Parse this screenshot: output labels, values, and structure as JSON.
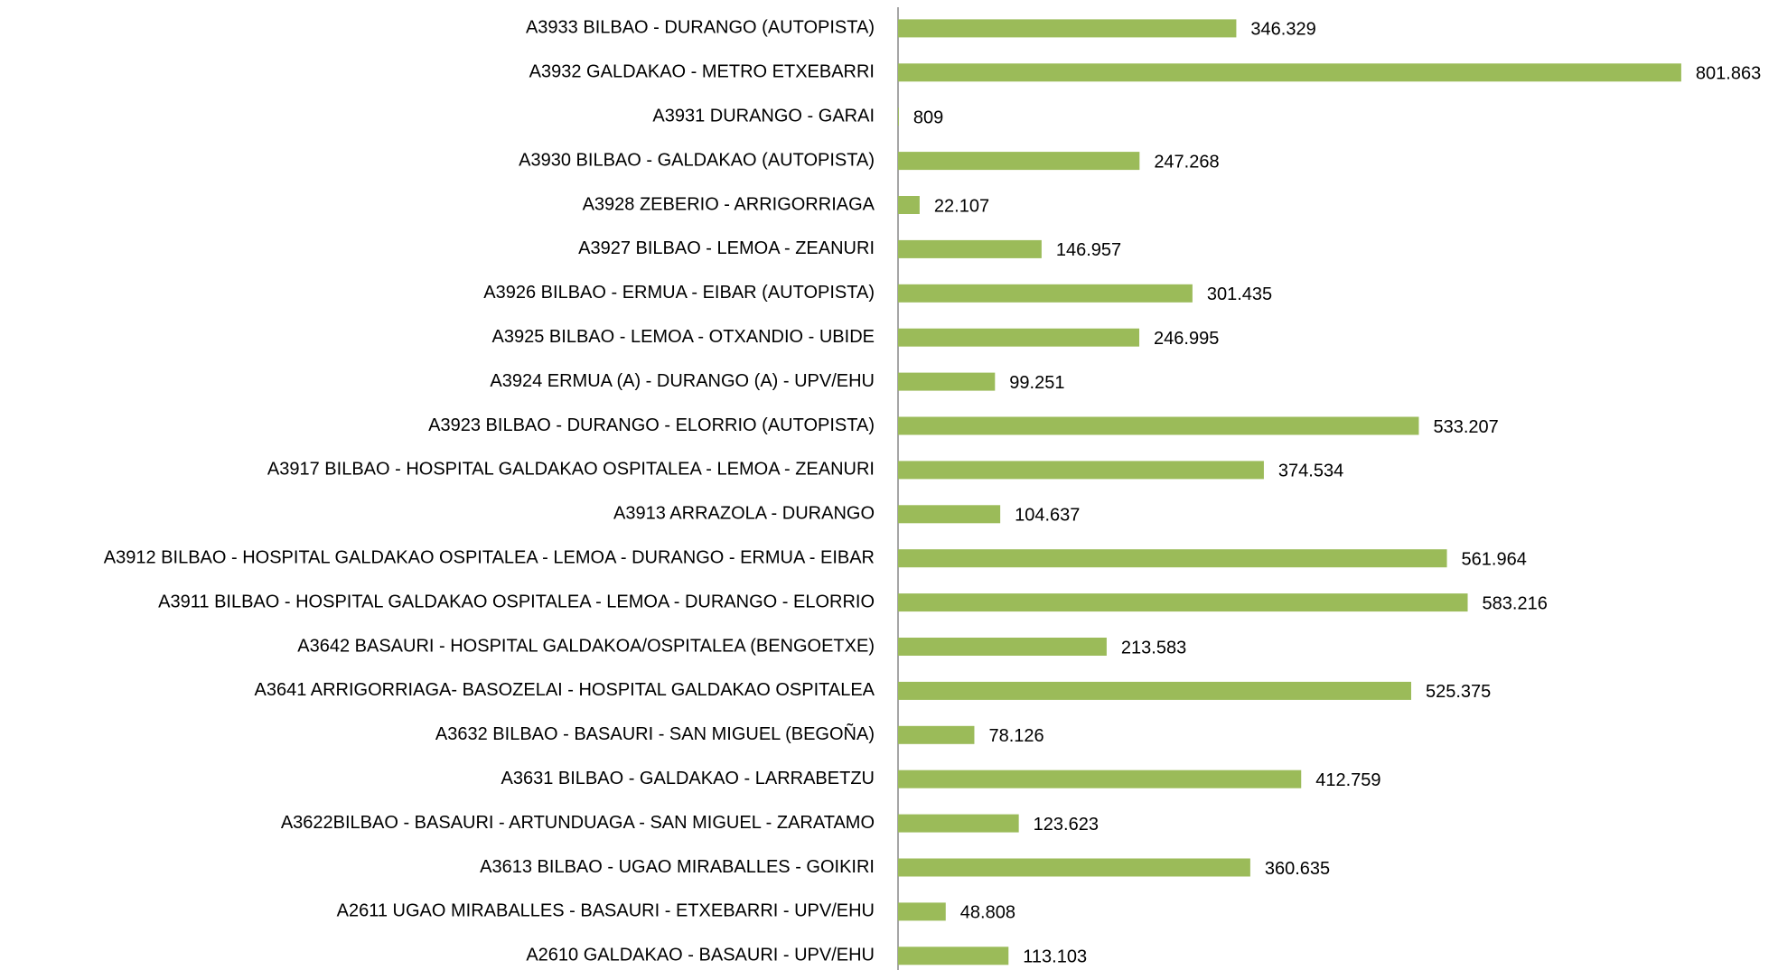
{
  "chart_data": {
    "type": "bar",
    "orientation": "horizontal",
    "categories": [
      "A3933 BILBAO - DURANGO (AUTOPISTA)",
      "A3932 GALDAKAO - METRO ETXEBARRI",
      "A3931 DURANGO - GARAI",
      "A3930 BILBAO - GALDAKAO (AUTOPISTA)",
      "A3928 ZEBERIO - ARRIGORRIAGA",
      "A3927 BILBAO - LEMOA - ZEANURI",
      "A3926 BILBAO - ERMUA - EIBAR (AUTOPISTA)",
      "A3925 BILBAO - LEMOA - OTXANDIO - UBIDE",
      "A3924 ERMUA (A) - DURANGO (A) - UPV/EHU",
      "A3923 BILBAO - DURANGO - ELORRIO (AUTOPISTA)",
      "A3917 BILBAO - HOSPITAL GALDAKAO OSPITALEA - LEMOA - ZEANURI",
      "A3913 ARRAZOLA - DURANGO",
      "A3912 BILBAO - HOSPITAL GALDAKAO OSPITALEA - LEMOA - DURANGO - ERMUA - EIBAR",
      "A3911 BILBAO - HOSPITAL GALDAKAO OSPITALEA - LEMOA - DURANGO - ELORRIO",
      "A3642 BASAURI - HOSPITAL GALDAKOA/OSPITALEA (BENGOETXE)",
      "A3641 ARRIGORRIAGA- BASOZELAI - HOSPITAL GALDAKAO OSPITALEA",
      "A3632 BILBAO - BASAURI - SAN MIGUEL (BEGOÑA)",
      "A3631 BILBAO - GALDAKAO - LARRABETZU",
      "A3622BILBAO - BASAURI - ARTUNDUAGA - SAN MIGUEL - ZARATAMO",
      "A3613 BILBAO - UGAO MIRABALLES - GOIKIRI",
      "A2611 UGAO MIRABALLES - BASAURI - ETXEBARRI - UPV/EHU",
      "A2610 GALDAKAO - BASAURI - UPV/EHU"
    ],
    "values": [
      346329,
      801863,
      809,
      247268,
      22107,
      146957,
      301435,
      246995,
      99251,
      533207,
      374534,
      104637,
      561964,
      583216,
      213583,
      525375,
      78126,
      412759,
      123623,
      360635,
      48808,
      113103
    ],
    "value_labels": [
      "346.329",
      "801.863",
      "809",
      "247.268",
      "22.107",
      "146.957",
      "301.435",
      "246.995",
      "99.251",
      "533.207",
      "374.534",
      "104.637",
      "561.964",
      "583.216",
      "213.583",
      "525.375",
      "78.126",
      "412.759",
      "123.623",
      "360.635",
      "48.808",
      "113.103"
    ],
    "color": "#9bbb59",
    "xlim": [
      0,
      900000
    ]
  }
}
